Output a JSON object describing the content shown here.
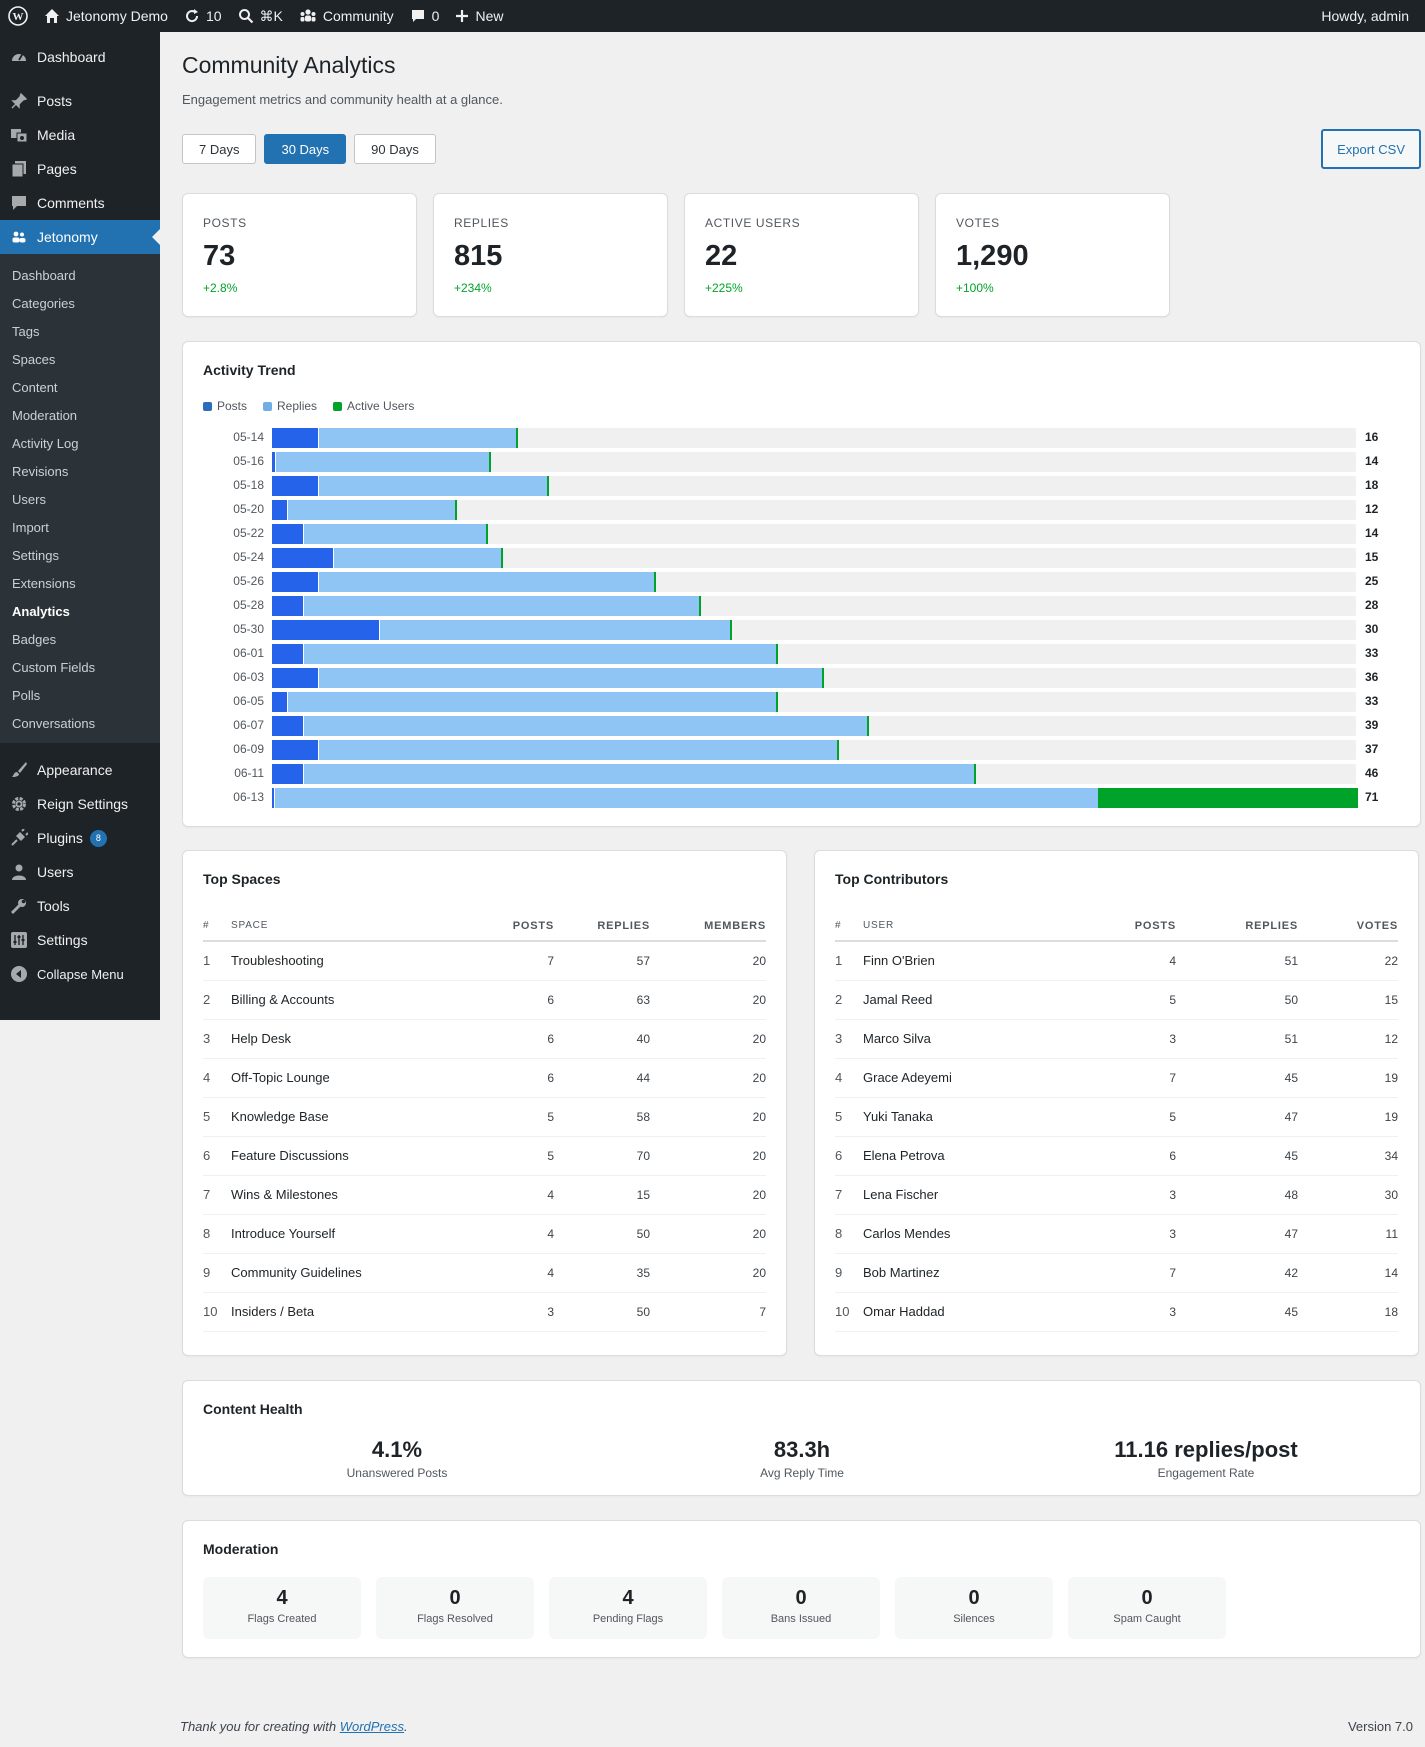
{
  "adminbar": {
    "site_name": "Jetonomy Demo",
    "updates_count": "10",
    "search_shortcut": "⌘K",
    "community_label": "Community",
    "comments_count": "0",
    "new_label": "New",
    "howdy": "Howdy, admin"
  },
  "sidebar": {
    "top_items": [
      {
        "label": "Dashboard",
        "icon": "dashboard-icon"
      },
      {
        "label": "Posts",
        "icon": "pin-icon"
      },
      {
        "label": "Media",
        "icon": "media-icon"
      },
      {
        "label": "Pages",
        "icon": "pages-icon"
      },
      {
        "label": "Comments",
        "icon": "comment-icon"
      },
      {
        "label": "Jetonomy",
        "icon": "groups-icon"
      }
    ],
    "submenu": [
      "Dashboard",
      "Categories",
      "Tags",
      "Spaces",
      "Content",
      "Moderation",
      "Activity Log",
      "Revisions",
      "Users",
      "Import",
      "Settings",
      "Extensions",
      "Analytics",
      "Badges",
      "Custom Fields",
      "Polls",
      "Conversations"
    ],
    "bottom_items": [
      {
        "label": "Appearance",
        "icon": "brush-icon"
      },
      {
        "label": "Reign Settings",
        "icon": "gear-icon"
      },
      {
        "label": "Plugins",
        "icon": "plug-icon",
        "badge": "8"
      },
      {
        "label": "Users",
        "icon": "user-icon"
      },
      {
        "label": "Tools",
        "icon": "wrench-icon"
      },
      {
        "label": "Settings",
        "icon": "sliders-icon"
      },
      {
        "label": "Collapse Menu",
        "icon": "collapse-icon"
      }
    ]
  },
  "page": {
    "title": "Community Analytics",
    "subtitle": "Engagement metrics and community health at a glance.",
    "ranges": [
      "7 Days",
      "30 Days",
      "90 Days"
    ],
    "active_range": "30 Days",
    "export_label": "Export CSV"
  },
  "stats": [
    {
      "label": "POSTS",
      "value": "73",
      "change": "+2.8%"
    },
    {
      "label": "REPLIES",
      "value": "815",
      "change": "+234%"
    },
    {
      "label": "ACTIVE USERS",
      "value": "22",
      "change": "+225%"
    },
    {
      "label": "VOTES",
      "value": "1,290",
      "change": "+100%"
    }
  ],
  "activity": {
    "title": "Activity Trend",
    "legend": [
      {
        "name": "Posts",
        "color": "#2a6ebb"
      },
      {
        "name": "Replies",
        "color": "#72aee6"
      },
      {
        "name": "Active Users",
        "color": "#00a32a"
      }
    ]
  },
  "chart_data": {
    "type": "bar",
    "orientation": "horizontal",
    "stacked": true,
    "categories": [
      "05-14",
      "05-16",
      "05-18",
      "05-20",
      "05-22",
      "05-24",
      "05-26",
      "05-28",
      "05-30",
      "06-01",
      "06-03",
      "06-05",
      "06-07",
      "06-09",
      "06-11",
      "06-13"
    ],
    "series": [
      {
        "name": "Posts",
        "values": [
          3,
          0.2,
          3,
          1,
          2,
          4,
          3,
          2,
          7,
          2,
          3,
          1,
          2,
          3,
          2,
          0.1
        ]
      },
      {
        "name": "Replies",
        "values": [
          13,
          14,
          15,
          11,
          12,
          11,
          22,
          26,
          23,
          31,
          33,
          32,
          37,
          34,
          44,
          54
        ]
      },
      {
        "name": "Active Users",
        "values": [
          0.1,
          0.1,
          0.1,
          0.1,
          0.1,
          0.1,
          0.1,
          0.1,
          0.1,
          0.1,
          0.1,
          0.1,
          0.1,
          0.1,
          0.1,
          17
        ]
      }
    ],
    "totals": [
      "16",
      "14",
      "18",
      "12",
      "14",
      "15",
      "25",
      "28",
      "30",
      "33",
      "36",
      "33",
      "39",
      "37",
      "46",
      "71"
    ],
    "xlim": [
      0,
      71
    ]
  },
  "top_spaces": {
    "title": "Top Spaces",
    "headers": [
      "#",
      "SPACE",
      "POSTS",
      "REPLIES",
      "MEMBERS"
    ],
    "rows": [
      [
        "1",
        "Troubleshooting",
        "7",
        "57",
        "20"
      ],
      [
        "2",
        "Billing & Accounts",
        "6",
        "63",
        "20"
      ],
      [
        "3",
        "Help Desk",
        "6",
        "40",
        "20"
      ],
      [
        "4",
        "Off-Topic Lounge",
        "6",
        "44",
        "20"
      ],
      [
        "5",
        "Knowledge Base",
        "5",
        "58",
        "20"
      ],
      [
        "6",
        "Feature Discussions",
        "5",
        "70",
        "20"
      ],
      [
        "7",
        "Wins & Milestones",
        "4",
        "15",
        "20"
      ],
      [
        "8",
        "Introduce Yourself",
        "4",
        "50",
        "20"
      ],
      [
        "9",
        "Community Guidelines",
        "4",
        "35",
        "20"
      ],
      [
        "10",
        "Insiders / Beta",
        "3",
        "50",
        "7"
      ]
    ]
  },
  "top_contributors": {
    "title": "Top Contributors",
    "headers": [
      "#",
      "USER",
      "POSTS",
      "REPLIES",
      "VOTES"
    ],
    "rows": [
      [
        "1",
        "Finn O'Brien",
        "4",
        "51",
        "22"
      ],
      [
        "2",
        "Jamal Reed",
        "5",
        "50",
        "15"
      ],
      [
        "3",
        "Marco Silva",
        "3",
        "51",
        "12"
      ],
      [
        "4",
        "Grace Adeyemi",
        "7",
        "45",
        "19"
      ],
      [
        "5",
        "Yuki Tanaka",
        "5",
        "47",
        "19"
      ],
      [
        "6",
        "Elena Petrova",
        "6",
        "45",
        "34"
      ],
      [
        "7",
        "Lena Fischer",
        "3",
        "48",
        "30"
      ],
      [
        "8",
        "Carlos Mendes",
        "3",
        "47",
        "11"
      ],
      [
        "9",
        "Bob Martinez",
        "7",
        "42",
        "14"
      ],
      [
        "10",
        "Omar Haddad",
        "3",
        "45",
        "18"
      ]
    ]
  },
  "content_health": {
    "title": "Content Health",
    "items": [
      {
        "value": "4.1%",
        "label": "Unanswered Posts"
      },
      {
        "value": "83.3h",
        "label": "Avg Reply Time"
      },
      {
        "value": "11.16 replies/post",
        "label": "Engagement Rate"
      }
    ]
  },
  "moderation": {
    "title": "Moderation",
    "items": [
      {
        "value": "4",
        "label": "Flags Created"
      },
      {
        "value": "0",
        "label": "Flags Resolved"
      },
      {
        "value": "4",
        "label": "Pending Flags"
      },
      {
        "value": "0",
        "label": "Bans Issued"
      },
      {
        "value": "0",
        "label": "Silences"
      },
      {
        "value": "0",
        "label": "Spam Caught"
      }
    ]
  },
  "footer": {
    "thanks_prefix": "Thank you for creating with ",
    "wp_link": "WordPress",
    "thanks_suffix": ".",
    "version": "Version 7.0"
  }
}
